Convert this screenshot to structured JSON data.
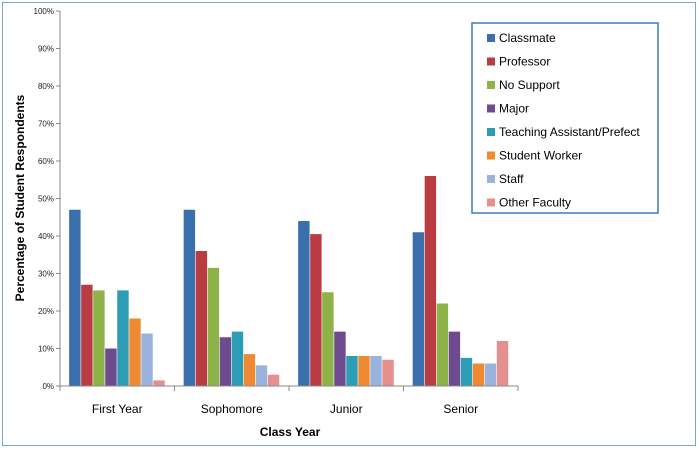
{
  "chart_data": {
    "type": "bar",
    "xlabel": "Class Year",
    "ylabel": "Percentage of Student Respondents",
    "categories": [
      "First Year",
      "Sophomore",
      "Junior",
      "Senior"
    ],
    "ylim": [
      0,
      100
    ],
    "y_ticks": [
      "0%",
      "10%",
      "20%",
      "30%",
      "40%",
      "50%",
      "60%",
      "70%",
      "80%",
      "90%",
      "100%"
    ],
    "legend_position": "top-right",
    "grid": false,
    "series": [
      {
        "name": "Classmate",
        "color": "#3a6fab",
        "values": [
          47,
          47,
          44,
          41
        ]
      },
      {
        "name": "Professor",
        "color": "#b83c41",
        "values": [
          27,
          36,
          40.5,
          56
        ]
      },
      {
        "name": "No Support",
        "color": "#8db348",
        "values": [
          25.5,
          31.5,
          25,
          22
        ]
      },
      {
        "name": "Major",
        "color": "#6e4a8e",
        "values": [
          10,
          13,
          14.5,
          14.5
        ]
      },
      {
        "name": "Teaching Assistant/Prefect",
        "color": "#2c9db4",
        "values": [
          25.5,
          14.5,
          8,
          7.5
        ]
      },
      {
        "name": "Student Worker",
        "color": "#ef8a33",
        "values": [
          18,
          8.5,
          8,
          6
        ]
      },
      {
        "name": "Staff",
        "color": "#99b3dd",
        "values": [
          14,
          5.5,
          8,
          6
        ]
      },
      {
        "name": "Other Faculty",
        "color": "#e5908f",
        "values": [
          1.5,
          3,
          7,
          12
        ]
      }
    ]
  }
}
